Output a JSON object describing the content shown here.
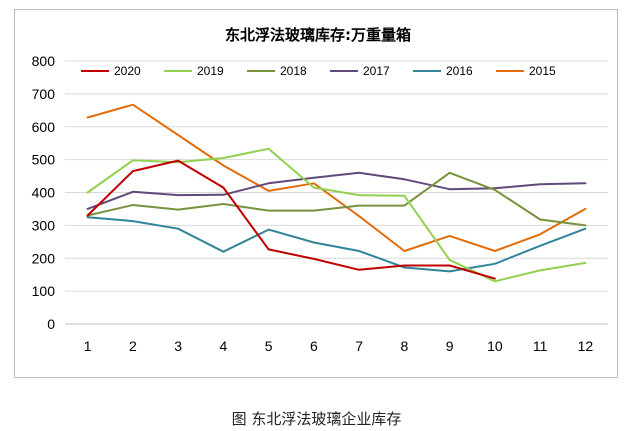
{
  "chart_data": {
    "type": "line",
    "title": "东北浮法玻璃库存:万重量箱",
    "categories": [
      "1",
      "2",
      "3",
      "4",
      "5",
      "6",
      "7",
      "8",
      "9",
      "10",
      "11",
      "12"
    ],
    "ylim": [
      0,
      800
    ],
    "yticks": [
      "0",
      "100",
      "200",
      "300",
      "400",
      "500",
      "600",
      "700",
      "800"
    ],
    "grid": true,
    "legend_position": "top",
    "series": [
      {
        "name": "2020",
        "color": "#c00000",
        "values": [
          330,
          465,
          497,
          415,
          227,
          198,
          165,
          178,
          178,
          138,
          null,
          null
        ]
      },
      {
        "name": "2019",
        "color": "#92d050",
        "values": [
          400,
          498,
          492,
          505,
          533,
          415,
          392,
          390,
          195,
          130,
          163,
          186
        ]
      },
      {
        "name": "2018",
        "color": "#77933c",
        "values": [
          330,
          362,
          348,
          365,
          345,
          345,
          360,
          360,
          460,
          408,
          318,
          300
        ]
      },
      {
        "name": "2017",
        "color": "#604a7b",
        "values": [
          350,
          402,
          392,
          393,
          428,
          445,
          460,
          440,
          410,
          413,
          425,
          428
        ]
      },
      {
        "name": "2016",
        "color": "#31849b",
        "values": [
          325,
          313,
          290,
          220,
          287,
          248,
          222,
          172,
          160,
          183,
          238,
          290
        ]
      },
      {
        "name": "2015",
        "color": "#e46c0a",
        "values": [
          628,
          667,
          575,
          482,
          405,
          428,
          328,
          222,
          268,
          222,
          273,
          350
        ]
      }
    ]
  },
  "caption": "图  东北浮法玻璃企业库存"
}
